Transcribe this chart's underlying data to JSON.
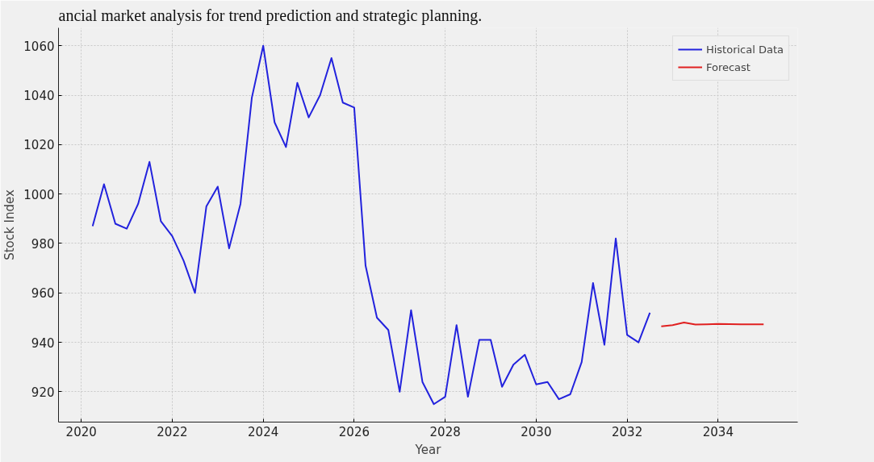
{
  "chart_data": {
    "type": "line",
    "xlabel": "Year",
    "ylabel": "Stock Index",
    "annotations": [
      "ancial market analysis for trend prediction and strategic planning."
    ],
    "series": [
      {
        "name": "Historical Data",
        "color": "#2222dd",
        "x": [
          2020.25,
          2020.5,
          2020.75,
          2021.0,
          2021.25,
          2021.5,
          2021.75,
          2022.0,
          2022.25,
          2022.5,
          2022.75,
          2023.0,
          2023.25,
          2023.5,
          2023.75,
          2024.0,
          2024.25,
          2024.5,
          2024.75,
          2025.0,
          2025.25,
          2025.5,
          2025.75,
          2026.0,
          2026.25,
          2026.5,
          2026.75,
          2027.0,
          2027.25,
          2027.5,
          2027.75,
          2028.0,
          2028.25,
          2028.5,
          2028.75,
          2029.0,
          2029.25,
          2029.5,
          2029.75,
          2030.0,
          2030.25,
          2030.5,
          2030.75,
          2031.0,
          2031.25,
          2031.5,
          2031.75,
          2032.0,
          2032.25,
          2032.5
        ],
        "values": [
          987,
          1004,
          988,
          986,
          996,
          1013,
          989,
          983,
          973,
          960,
          995,
          1003,
          978,
          996,
          1039,
          1060,
          1029,
          1019,
          1045,
          1031,
          1040,
          1055,
          1037,
          1035,
          971,
          950,
          945,
          920,
          953,
          924,
          915,
          918,
          947,
          918,
          941,
          941,
          922,
          931,
          935,
          923,
          924,
          917,
          919,
          932,
          964,
          939,
          982,
          943,
          940,
          952
        ]
      },
      {
        "name": "Forecast",
        "color": "#e02020",
        "x": [
          2032.75,
          2033.0,
          2033.25,
          2033.5,
          2033.75,
          2034.0,
          2034.25,
          2034.5,
          2034.75,
          2035.0
        ],
        "values": [
          946.5,
          947,
          948,
          947.2,
          947.3,
          947.5,
          947.4,
          947.3,
          947.3,
          947.3
        ]
      }
    ],
    "xlim": [
      2019.5,
      2035.75
    ],
    "ylim": [
      907.75,
      1067.25
    ],
    "xticks": [
      2020,
      2022,
      2024,
      2026,
      2028,
      2030,
      2032,
      2034
    ],
    "yticks": [
      920,
      940,
      960,
      980,
      1000,
      1020,
      1040,
      1060
    ],
    "grid": true,
    "legend": "top right",
    "line_style": "solid",
    "marker": "none"
  }
}
